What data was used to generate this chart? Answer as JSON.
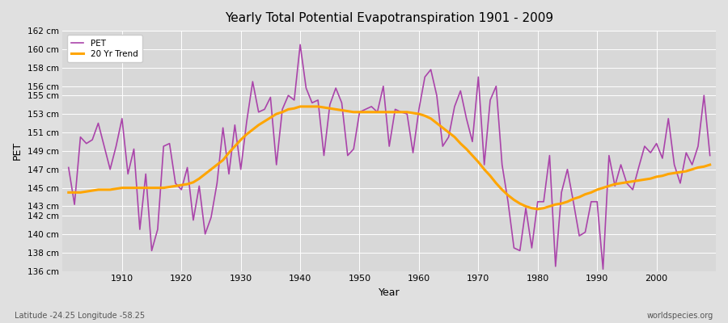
{
  "title": "Yearly Total Potential Evapotranspiration 1901 - 2009",
  "xlabel": "Year",
  "ylabel": "PET",
  "footnote_left": "Latitude -24.25 Longitude -58.25",
  "footnote_right": "worldspecies.org",
  "pet_color": "#aa44aa",
  "trend_color": "#FFA500",
  "bg_color": "#e0e0e0",
  "plot_bg_color": "#d8d8d8",
  "ylim": [
    136,
    162
  ],
  "yticks": [
    136,
    138,
    140,
    142,
    143,
    145,
    147,
    149,
    151,
    153,
    155,
    156,
    158,
    160,
    162
  ],
  "xlim": [
    1900,
    2010
  ],
  "xticks": [
    1910,
    1920,
    1930,
    1940,
    1950,
    1960,
    1970,
    1980,
    1990,
    2000
  ],
  "years": [
    1901,
    1902,
    1903,
    1904,
    1905,
    1906,
    1907,
    1908,
    1909,
    1910,
    1911,
    1912,
    1913,
    1914,
    1915,
    1916,
    1917,
    1918,
    1919,
    1920,
    1921,
    1922,
    1923,
    1924,
    1925,
    1926,
    1927,
    1928,
    1929,
    1930,
    1931,
    1932,
    1933,
    1934,
    1935,
    1936,
    1937,
    1938,
    1939,
    1940,
    1941,
    1942,
    1943,
    1944,
    1945,
    1946,
    1947,
    1948,
    1949,
    1950,
    1951,
    1952,
    1953,
    1954,
    1955,
    1956,
    1957,
    1958,
    1959,
    1960,
    1961,
    1962,
    1963,
    1964,
    1965,
    1966,
    1967,
    1968,
    1969,
    1970,
    1971,
    1972,
    1973,
    1974,
    1975,
    1976,
    1977,
    1978,
    1979,
    1980,
    1981,
    1982,
    1983,
    1984,
    1985,
    1986,
    1987,
    1988,
    1989,
    1990,
    1991,
    1992,
    1993,
    1994,
    1995,
    1996,
    1997,
    1998,
    1999,
    2000,
    2001,
    2002,
    2003,
    2004,
    2005,
    2006,
    2007,
    2008,
    2009
  ],
  "pet_values": [
    147.2,
    143.2,
    150.5,
    149.8,
    150.2,
    152.0,
    149.5,
    147.0,
    149.5,
    152.5,
    146.5,
    149.2,
    140.5,
    146.5,
    138.2,
    140.5,
    149.5,
    149.8,
    145.5,
    144.8,
    147.2,
    141.5,
    145.2,
    140.0,
    141.8,
    145.5,
    151.5,
    146.5,
    151.8,
    147.0,
    152.2,
    156.5,
    153.2,
    153.5,
    154.8,
    147.5,
    153.5,
    155.0,
    154.5,
    160.5,
    155.8,
    154.2,
    154.5,
    148.5,
    154.0,
    155.8,
    154.2,
    148.5,
    149.2,
    153.2,
    153.5,
    153.8,
    153.2,
    156.0,
    149.5,
    153.5,
    153.2,
    153.0,
    148.8,
    153.5,
    157.0,
    157.8,
    155.0,
    149.5,
    150.5,
    153.8,
    155.5,
    152.5,
    150.0,
    157.0,
    147.5,
    154.5,
    156.0,
    147.5,
    143.5,
    138.5,
    138.2,
    142.8,
    138.5,
    143.5,
    143.5,
    148.5,
    136.5,
    144.5,
    147.0,
    143.5,
    139.8,
    140.2,
    143.5,
    143.5,
    136.2,
    148.5,
    145.2,
    147.5,
    145.5,
    144.8,
    147.2,
    149.5,
    148.8,
    149.8,
    148.2,
    152.5,
    147.5,
    145.5,
    148.8,
    147.5,
    149.5,
    155.0,
    148.5
  ],
  "trend_values": [
    144.5,
    144.5,
    144.5,
    144.6,
    144.7,
    144.8,
    144.8,
    144.8,
    144.9,
    145.0,
    145.0,
    145.0,
    145.0,
    145.0,
    145.0,
    145.0,
    145.0,
    145.1,
    145.2,
    145.3,
    145.4,
    145.6,
    146.0,
    146.5,
    147.0,
    147.5,
    148.0,
    148.8,
    149.5,
    150.2,
    150.8,
    151.3,
    151.8,
    152.2,
    152.6,
    153.0,
    153.2,
    153.5,
    153.6,
    153.8,
    153.8,
    153.8,
    153.8,
    153.7,
    153.6,
    153.5,
    153.4,
    153.3,
    153.2,
    153.2,
    153.2,
    153.2,
    153.2,
    153.2,
    153.2,
    153.2,
    153.2,
    153.2,
    153.1,
    153.0,
    152.8,
    152.5,
    152.0,
    151.5,
    151.0,
    150.5,
    149.8,
    149.2,
    148.5,
    147.8,
    147.0,
    146.3,
    145.5,
    144.8,
    144.2,
    143.7,
    143.3,
    143.0,
    142.8,
    142.7,
    142.8,
    143.0,
    143.2,
    143.3,
    143.5,
    143.8,
    144.0,
    144.3,
    144.5,
    144.8,
    145.0,
    145.2,
    145.4,
    145.5,
    145.6,
    145.7,
    145.8,
    145.9,
    146.0,
    146.2,
    146.3,
    146.5,
    146.6,
    146.7,
    146.8,
    147.0,
    147.2,
    147.3,
    147.5
  ]
}
